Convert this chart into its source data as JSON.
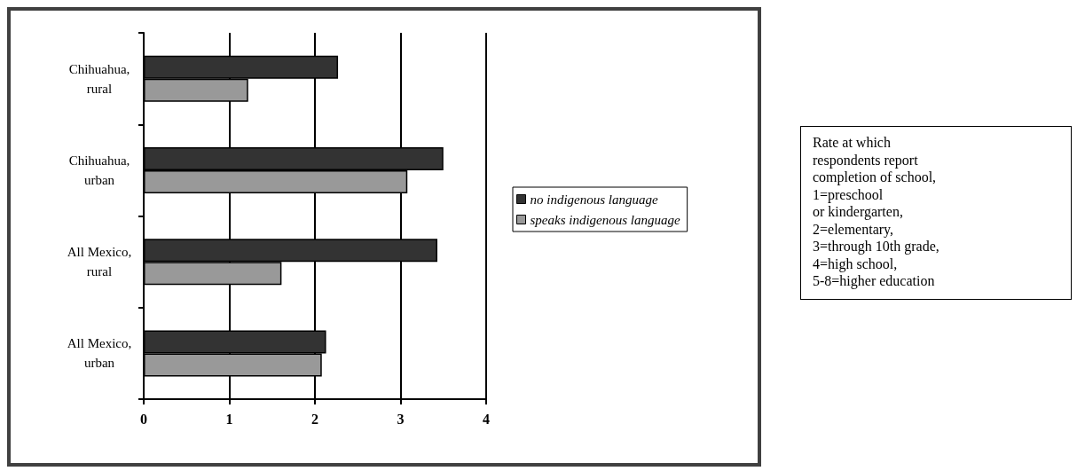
{
  "chart_data": {
    "type": "bar",
    "orientation": "horizontal",
    "categories": [
      "Chihuahua,\nrural",
      "Chihuahua,\nurban",
      "All Mexico,\nrural",
      "All Mexico,\nurban"
    ],
    "series": [
      {
        "name": "no indigenous language",
        "color": "#333333",
        "values": [
          2.27,
          3.5,
          3.43,
          2.13
        ]
      },
      {
        "name": "speaks indigenous language",
        "color": "#999999",
        "values": [
          1.22,
          3.08,
          1.61,
          2.08
        ]
      }
    ],
    "xlim": [
      0,
      4
    ],
    "xticks": [
      0,
      1,
      2,
      3,
      4
    ],
    "grid": "x",
    "legend": "right",
    "annotations": [
      "Rate at which\nrespondents report\ncompletion of school,\n1=preschool\nor kindergarten,\n2=elementary,\n3=through 10th grade,\n4=high school,\n5-8=higher education"
    ]
  }
}
